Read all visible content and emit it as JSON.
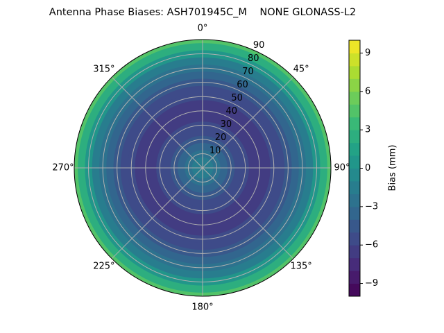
{
  "chart_data": {
    "type": "polar_contour",
    "title": "Antenna Phase Biases: ASH701945C_M    NONE GLONASS-L2",
    "x": [
      0,
      5,
      10,
      15,
      20,
      25,
      30,
      35,
      40,
      45,
      50,
      55,
      60,
      65,
      70,
      75,
      80,
      85,
      90
    ],
    "values": [
      -1.5,
      -2,
      -3,
      -4,
      -5,
      -5.5,
      -6,
      -6.5,
      -6.5,
      -6.5,
      -6,
      -5.5,
      -5,
      -4,
      -3,
      -1.5,
      0,
      2,
      4
    ],
    "rlim": [
      0,
      90
    ],
    "rticks": [
      10,
      20,
      30,
      40,
      50,
      60,
      70,
      80,
      90
    ],
    "thetaticks": [
      {
        "value": 0,
        "label": "0°"
      },
      {
        "value": 45,
        "label": "45°"
      },
      {
        "value": 90,
        "label": "90°"
      },
      {
        "value": 135,
        "label": "135°"
      },
      {
        "value": 180,
        "label": "180°"
      },
      {
        "value": 225,
        "label": "225°"
      },
      {
        "value": 270,
        "label": "270°"
      },
      {
        "value": 315,
        "label": "315°"
      }
    ],
    "colormap": "viridis",
    "levels": 20,
    "colorbar_label": "Bias (mm)",
    "ylim": [
      -10,
      10
    ],
    "yticks": [
      {
        "value": -9,
        "label": "−9"
      },
      {
        "value": -6,
        "label": "−6"
      },
      {
        "value": -3,
        "label": "−3"
      },
      0,
      3,
      6,
      9
    ],
    "grid": true
  }
}
